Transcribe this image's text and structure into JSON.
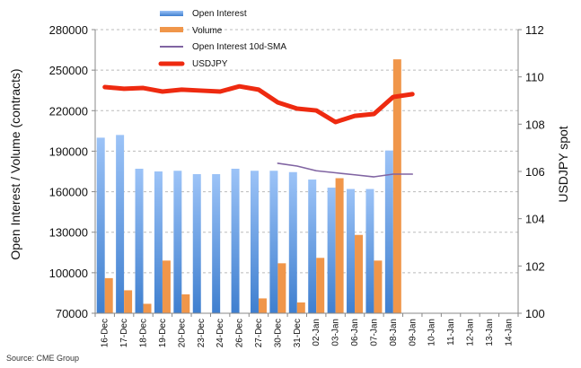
{
  "chart_data": {
    "type": "bar",
    "title": "",
    "categories": [
      "16-Dec",
      "17-Dec",
      "18-Dec",
      "19-Dec",
      "20-Dec",
      "23-Dec",
      "24-Dec",
      "26-Dec",
      "27-Dec",
      "30-Dec",
      "31-Dec",
      "02-Jan",
      "03-Jan",
      "06-Jan",
      "07-Jan",
      "08-Jan",
      "09-Jan",
      "10-Jan",
      "11-Jan",
      "12-Jan",
      "13-Jan",
      "14-Jan"
    ],
    "ylabel": "Open Interest / Volume (contracts)",
    "y2label": "USDJPY spot",
    "ylim": [
      70000,
      280000
    ],
    "yticks": [
      70000,
      100000,
      130000,
      160000,
      190000,
      220000,
      250000,
      280000
    ],
    "y2lim": [
      100,
      112
    ],
    "y2ticks": [
      100,
      102,
      104,
      106,
      108,
      110,
      112
    ],
    "grid": true,
    "legend_position": "top-center",
    "series": [
      {
        "name": "Open Interest",
        "kind": "bar",
        "axis": "left",
        "color": "#5b9bd5",
        "values": [
          200000,
          202000,
          177000,
          175000,
          175500,
          173000,
          173000,
          177000,
          175500,
          175500,
          174500,
          169000,
          163000,
          162000,
          162000,
          190500,
          null,
          null,
          null,
          null,
          null,
          null
        ]
      },
      {
        "name": "Volume",
        "kind": "bar",
        "axis": "left",
        "color": "#f0964a",
        "values": [
          96000,
          87000,
          77000,
          109000,
          84000,
          0,
          0,
          0,
          81000,
          107000,
          78000,
          111000,
          170000,
          128000,
          109000,
          258000,
          null,
          null,
          null,
          null,
          null,
          null
        ]
      },
      {
        "name": "Open Interest 10d-SMA",
        "kind": "line",
        "axis": "left",
        "color": "#8064a2",
        "values": [
          null,
          null,
          null,
          null,
          null,
          null,
          null,
          null,
          null,
          181000,
          179000,
          175500,
          174000,
          172500,
          171000,
          173000,
          173000,
          null,
          null,
          null,
          null,
          null
        ]
      },
      {
        "name": "USDJPY",
        "kind": "line",
        "axis": "right",
        "color": "#ee2a10",
        "values": [
          109.57,
          109.5,
          109.53,
          109.38,
          109.46,
          109.42,
          109.38,
          109.6,
          109.46,
          108.92,
          108.66,
          108.58,
          108.09,
          108.35,
          108.43,
          109.15,
          109.27,
          null,
          null,
          null,
          null,
          null
        ]
      }
    ],
    "source": "Source: CME Group"
  }
}
